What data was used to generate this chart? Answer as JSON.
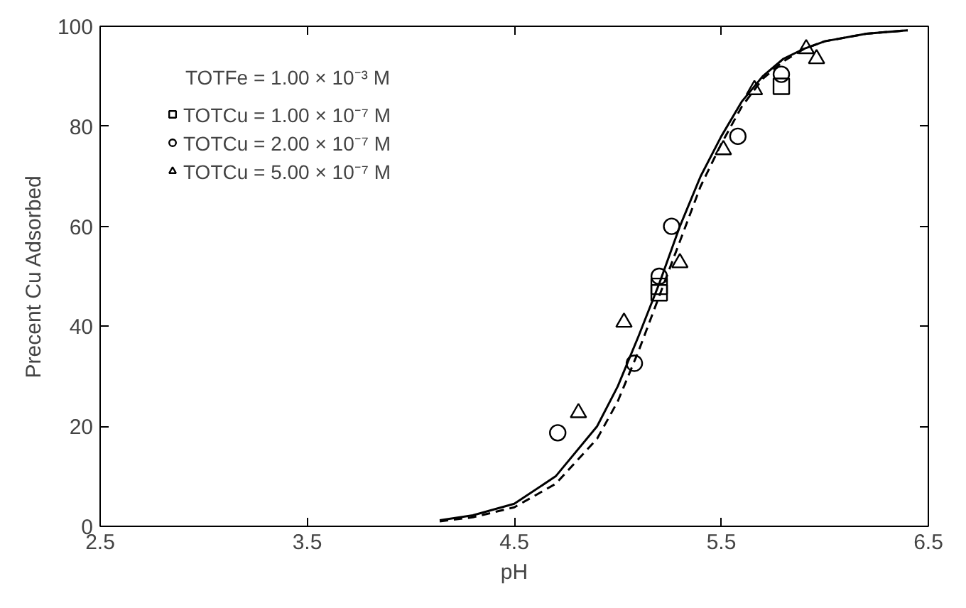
{
  "chart_data": {
    "type": "scatter",
    "xlabel": "pH",
    "ylabel": "Precent Cu Adsorbed",
    "xlim": [
      2.5,
      6.5
    ],
    "xticks": [
      2.5,
      3.5,
      4.5,
      5.5,
      6.5
    ],
    "ylim": [
      0,
      100
    ],
    "yticks": [
      0,
      20,
      40,
      60,
      80,
      100
    ],
    "grid": false,
    "legend": "top left",
    "annotations": [
      "TOTFe = 1.00 × 10⁻³ M"
    ],
    "series": [
      {
        "name": "TOTCu = 1.00 × 10⁻⁷ M",
        "color": "#000000",
        "marker": "square",
        "x": [
          5.2,
          5.2,
          5.79
        ],
        "values": [
          46.7,
          48,
          88
        ]
      },
      {
        "name": "TOTCu = 2.00 × 10⁻⁷ M",
        "color": "#000000",
        "marker": "circle",
        "x": [
          4.71,
          5.08,
          5.2,
          5.26,
          5.58,
          5.79
        ],
        "values": [
          18.7,
          32.6,
          50,
          60,
          78,
          90.4
        ]
      },
      {
        "name": "TOTCu = 5.00 × 10⁻⁷ M",
        "color": "#000000",
        "marker": "triangle",
        "x": [
          4.81,
          5.03,
          5.3,
          5.51,
          5.66,
          5.91,
          5.96
        ],
        "values": [
          22.7,
          40.8,
          52.7,
          75.3,
          87.3,
          95.5,
          93.5
        ]
      },
      {
        "type": "line",
        "color": "#000000",
        "line_style": "solid",
        "x": [
          4.14,
          4.3,
          4.5,
          4.7,
          4.9,
          5.0,
          5.1,
          5.2,
          5.3,
          5.4,
          5.5,
          5.6,
          5.7,
          5.8,
          5.9,
          6.0,
          6.2,
          6.4
        ],
        "values": [
          1.2,
          2.2,
          4.5,
          10,
          20,
          28,
          38,
          48.5,
          60,
          70,
          78,
          85,
          90,
          93.5,
          95.5,
          97,
          98.5,
          99.2
        ]
      },
      {
        "type": "line",
        "color": "#000000",
        "line_style": "dashed",
        "x": [
          4.14,
          4.3,
          4.5,
          4.7,
          4.9,
          5.0,
          5.1,
          5.2,
          5.3,
          5.4,
          5.5,
          5.6,
          5.7,
          5.8,
          5.9,
          6.0,
          6.2,
          6.4
        ],
        "values": [
          1.0,
          1.8,
          3.8,
          8.5,
          17.5,
          25,
          35,
          46,
          57,
          68,
          76.5,
          84,
          89.5,
          93,
          95.5,
          97,
          98.5,
          99.2
        ]
      }
    ]
  }
}
